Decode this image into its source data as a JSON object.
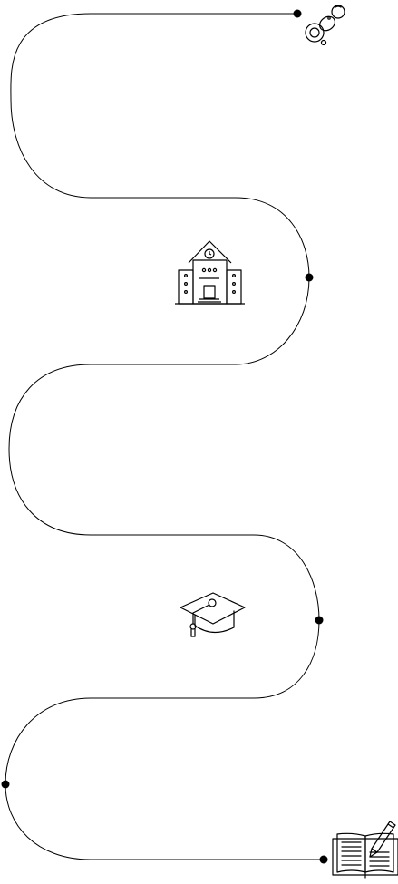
{
  "diagram": {
    "type": "life-stage-roadmap",
    "line_color": "#000000",
    "background_color": "#ffffff",
    "stages": [
      {
        "order": 1,
        "icon": "pacifier-icon"
      },
      {
        "order": 2,
        "icon": "school-building-icon"
      },
      {
        "order": 3,
        "icon": "graduation-cap-icon"
      },
      {
        "order": 4,
        "icon": "open-book-writing-icon"
      }
    ]
  }
}
